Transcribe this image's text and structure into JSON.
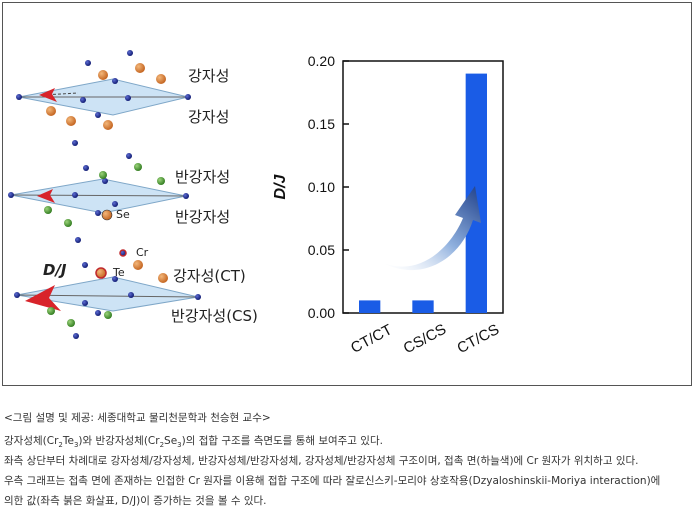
{
  "figure": {
    "structures": [
      {
        "labels": [
          "강자성",
          "강자성"
        ]
      },
      {
        "labels": [
          "반강자성",
          "반강자성"
        ]
      },
      {
        "labels": [
          "강자성(CT)",
          "반강자성(CS)"
        ]
      }
    ],
    "atoms": {
      "se": "Se",
      "cr": "Cr",
      "te": "Te"
    },
    "dj": "D/J"
  },
  "chart_data": {
    "type": "bar",
    "categories": [
      "CT/CT",
      "CS/CS",
      "CT/CS"
    ],
    "values": [
      0.01,
      0.01,
      0.19
    ],
    "ylabel": "D/J",
    "ylim": [
      0,
      0.2
    ],
    "yticks": [
      "0.00",
      "0.05",
      "0.10",
      "0.15",
      "0.20"
    ],
    "bar_color": "#1a5ce6"
  },
  "caption": {
    "credit": "<그림 설명 및 제공: 세종대학교 물리천문학과 천승현 교수>",
    "line1": [
      "강자성체(Cr",
      "2",
      "Te",
      "3",
      ")와 반강자성체(Cr",
      "2",
      "Se",
      "3",
      ")의 접합 구조를 측면도를 통해 보여주고 있다."
    ],
    "line2": "좌측 상단부터 차례대로 강자성체/강자성체, 반강자성체/반강자성체, 강자성체/반강자성체 구조이며, 접촉 면(하늘색)에 Cr 원자가 위치하고 있다.",
    "line3": "우측 그래프는 접촉 면에 존재하는 인접한 Cr 원자를 이용해 접합 구조에 따라 잘로신스키-모리야 상호작용(Dzyaloshinskii-Moriya interaction)에",
    "line4": "의한 값(좌측 붉은 화살표, D/J)이 증가하는 것을 볼 수 있다."
  }
}
